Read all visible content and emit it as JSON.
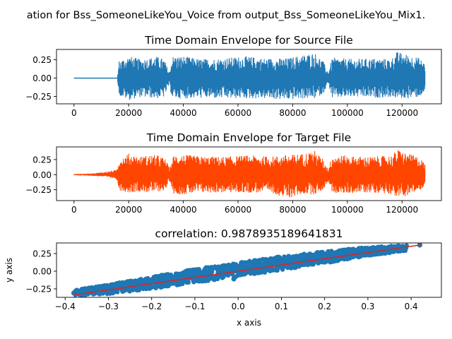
{
  "suptitle": "ation for Bss_SomeoneLikeYou_Voice from output_Bss_SomeoneLikeYou_Mix1.",
  "chart_data": [
    {
      "type": "line",
      "title": "Time Domain Envelope for Source File",
      "xlabel": "",
      "ylabel": "",
      "color": "#1f77b4",
      "xlim": [
        -6400,
        134400
      ],
      "ylim": [
        -0.35,
        0.39
      ],
      "xticks": [
        0,
        20000,
        40000,
        60000,
        80000,
        100000,
        120000
      ],
      "xtick_labels": [
        "0",
        "20000",
        "40000",
        "60000",
        "80000",
        "100000",
        "120000"
      ],
      "yticks": [
        0.25,
        0.0,
        -0.25
      ],
      "ytick_labels": [
        "0.25",
        "0.00",
        "−0.25"
      ],
      "envelope": {
        "x": [
          0,
          8000,
          15800,
          16500,
          20000,
          24000,
          28000,
          30000,
          33000,
          34800,
          36000,
          40000,
          46000,
          54000,
          62000,
          70000,
          78000,
          84000,
          88000,
          91000,
          93000,
          94500,
          97000,
          102000,
          110000,
          116000,
          118000,
          122000,
          126000,
          128500
        ],
        "max": [
          0.0,
          0.0,
          0.0,
          0.24,
          0.3,
          0.26,
          0.28,
          0.3,
          0.26,
          0.08,
          0.3,
          0.3,
          0.26,
          0.27,
          0.3,
          0.27,
          0.27,
          0.32,
          0.35,
          0.24,
          0.08,
          0.28,
          0.27,
          0.26,
          0.27,
          0.26,
          0.36,
          0.32,
          0.28,
          0.2
        ],
        "min": [
          0.0,
          0.0,
          0.0,
          -0.24,
          -0.3,
          -0.26,
          -0.27,
          -0.28,
          -0.26,
          -0.1,
          -0.28,
          -0.28,
          -0.27,
          -0.28,
          -0.28,
          -0.28,
          -0.3,
          -0.28,
          -0.28,
          -0.22,
          -0.08,
          -0.28,
          -0.27,
          -0.26,
          -0.27,
          -0.26,
          -0.28,
          -0.28,
          -0.26,
          -0.2
        ]
      }
    },
    {
      "type": "line",
      "title": "Time Domain Envelope for Target File",
      "xlabel": "",
      "ylabel": "",
      "color": "#ff4500",
      "xlim": [
        -6400,
        134400
      ],
      "ylim": [
        -0.43,
        0.46
      ],
      "xticks": [
        0,
        20000,
        40000,
        60000,
        80000,
        100000,
        120000
      ],
      "xtick_labels": [
        "0",
        "20000",
        "40000",
        "60000",
        "80000",
        "100000",
        "120000"
      ],
      "yticks": [
        0.25,
        0.0,
        -0.25
      ],
      "ytick_labels": [
        "0.25",
        "0.00",
        "−0.25"
      ],
      "envelope": {
        "x": [
          0,
          6000,
          10000,
          13000,
          15500,
          16500,
          20000,
          24000,
          28000,
          31000,
          33500,
          35000,
          36500,
          40000,
          48000,
          56000,
          64000,
          72000,
          78000,
          84000,
          88000,
          91000,
          93000,
          94500,
          98000,
          104000,
          110000,
          116000,
          118500,
          122000,
          126000,
          128500
        ],
        "max": [
          0.01,
          0.02,
          0.04,
          0.06,
          0.08,
          0.26,
          0.35,
          0.3,
          0.33,
          0.32,
          0.26,
          0.1,
          0.33,
          0.33,
          0.3,
          0.3,
          0.32,
          0.3,
          0.33,
          0.35,
          0.4,
          0.26,
          0.1,
          0.33,
          0.32,
          0.3,
          0.3,
          0.32,
          0.42,
          0.35,
          0.3,
          0.18
        ],
        "min": [
          -0.01,
          -0.02,
          -0.03,
          -0.05,
          -0.07,
          -0.26,
          -0.3,
          -0.28,
          -0.3,
          -0.28,
          -0.26,
          -0.1,
          -0.32,
          -0.33,
          -0.3,
          -0.3,
          -0.3,
          -0.3,
          -0.4,
          -0.32,
          -0.33,
          -0.26,
          -0.12,
          -0.3,
          -0.32,
          -0.3,
          -0.3,
          -0.32,
          -0.38,
          -0.35,
          -0.28,
          -0.18
        ]
      }
    },
    {
      "type": "scatter",
      "title": "correlation: 0.9878935189641831",
      "xlabel": "x axis",
      "ylabel": "y axis",
      "color": "#1f77b4",
      "line_color": "#d62728",
      "xlim": [
        -0.42,
        0.47
      ],
      "ylim": [
        -0.37,
        0.4
      ],
      "xticks": [
        -0.4,
        -0.3,
        -0.2,
        -0.1,
        0.0,
        0.1,
        0.2,
        0.3,
        0.4
      ],
      "xtick_labels": [
        "−0.4",
        "−0.3",
        "−0.2",
        "−0.1",
        "0.0",
        "0.1",
        "0.2",
        "0.3",
        "0.4"
      ],
      "yticks": [
        0.25,
        0.0,
        -0.25
      ],
      "ytick_labels": [
        "0.25",
        "0.00",
        "−0.25"
      ],
      "band": {
        "x": [
          -0.38,
          -0.3,
          -0.2,
          -0.1,
          0.0,
          0.1,
          0.2,
          0.3,
          0.39
        ],
        "upper": [
          -0.27,
          -0.19,
          -0.08,
          0.03,
          0.12,
          0.21,
          0.28,
          0.34,
          0.37
        ],
        "lower": [
          -0.34,
          -0.32,
          -0.25,
          -0.16,
          -0.08,
          0.02,
          0.11,
          0.22,
          0.29
        ]
      },
      "points": [
        {
          "x": -0.38,
          "y": -0.31
        },
        {
          "x": -0.36,
          "y": -0.33
        },
        {
          "x": -0.33,
          "y": -0.31
        },
        {
          "x": -0.1,
          "y": -0.13
        },
        {
          "x": -0.01,
          "y": -0.11
        },
        {
          "x": 0.06,
          "y": -0.01
        },
        {
          "x": 0.35,
          "y": 0.33
        },
        {
          "x": 0.38,
          "y": 0.35
        },
        {
          "x": 0.42,
          "y": 0.37
        }
      ],
      "fit_line": {
        "x": [
          -0.38,
          0.425
        ],
        "y": [
          -0.335,
          0.375
        ]
      }
    }
  ]
}
